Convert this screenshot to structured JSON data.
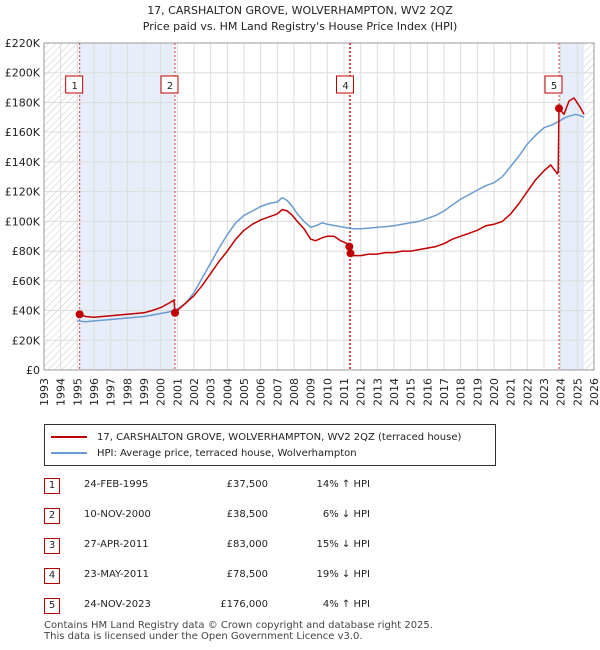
{
  "chart_data": {
    "type": "line",
    "title": "17, CARSHALTON GROVE, WOLVERHAMPTON, WV2 2QZ",
    "subtitle": "Price paid vs. HM Land Registry's House Price Index (HPI)",
    "xlim": [
      1993,
      2026
    ],
    "ylim": [
      0,
      220000
    ],
    "x_ticks": [
      1993,
      1994,
      1995,
      1996,
      1997,
      1998,
      1999,
      2000,
      2001,
      2002,
      2003,
      2004,
      2005,
      2006,
      2007,
      2008,
      2009,
      2010,
      2011,
      2012,
      2013,
      2014,
      2015,
      2016,
      2017,
      2018,
      2019,
      2020,
      2021,
      2022,
      2023,
      2024,
      2025,
      2026
    ],
    "y_ticks": [
      0,
      20000,
      40000,
      60000,
      80000,
      100000,
      120000,
      140000,
      160000,
      180000,
      200000,
      220000
    ],
    "y_tick_labels": [
      "£0",
      "£20K",
      "£40K",
      "£60K",
      "£80K",
      "£100K",
      "£120K",
      "£140K",
      "£160K",
      "£180K",
      "£200K",
      "£220K"
    ],
    "shaded_ranges": [
      [
        1995.14,
        2000.86
      ],
      [
        2023.9,
        2025.4
      ]
    ],
    "hatched_ranges": [
      [
        1993,
        1995.14
      ],
      [
        2025.4,
        2026
      ]
    ],
    "grid": true,
    "series": [
      {
        "name": "17, CARSHALTON GROVE, WOLVERHAMPTON, WV2 2QZ (terraced house)",
        "color": "#c00000",
        "x": [
          1995.14,
          1995.5,
          1996,
          1996.5,
          1997,
          1997.5,
          1998,
          1998.5,
          1999,
          1999.5,
          2000,
          2000.5,
          2000.8,
          2000.86,
          2001,
          2001.5,
          2002,
          2002.5,
          2003,
          2003.5,
          2004,
          2004.5,
          2005,
          2005.5,
          2006,
          2006.5,
          2007,
          2007.3,
          2007.6,
          2007.9,
          2008.2,
          2008.6,
          2009,
          2009.3,
          2009.7,
          2010,
          2010.4,
          2010.8,
          2011.2,
          2011.32,
          2011.39,
          2011.5,
          2012,
          2012.5,
          2013,
          2013.5,
          2014,
          2014.5,
          2015,
          2015.5,
          2016,
          2016.5,
          2017,
          2017.5,
          2018,
          2018.5,
          2019,
          2019.5,
          2020,
          2020.5,
          2021,
          2021.5,
          2022,
          2022.5,
          2023,
          2023.4,
          2023.8,
          2023.85,
          2023.9,
          2024.2,
          2024.5,
          2024.8,
          2025.1,
          2025.4
        ],
        "values": [
          37500,
          36000,
          35500,
          36000,
          36500,
          37000,
          37500,
          38000,
          38500,
          40000,
          42000,
          45000,
          47000,
          38500,
          40000,
          45000,
          50000,
          57000,
          65000,
          73000,
          80000,
          88000,
          94000,
          98000,
          101000,
          103000,
          105000,
          108000,
          107000,
          104000,
          100000,
          95000,
          88000,
          87000,
          89000,
          90000,
          90000,
          87000,
          85000,
          83000,
          78500,
          77000,
          77000,
          78000,
          78000,
          79000,
          79000,
          80000,
          80000,
          81000,
          82000,
          83000,
          85000,
          88000,
          90000,
          92000,
          94000,
          97000,
          98000,
          100000,
          105000,
          112000,
          120000,
          128000,
          134000,
          138000,
          132000,
          134000,
          176000,
          172000,
          181000,
          183000,
          178000,
          172000
        ]
      },
      {
        "name": "HPI: Average price, terraced house, Wolverhampton",
        "color": "#6a9bd1",
        "x": [
          1995,
          1995.5,
          1996,
          1996.5,
          1997,
          1997.5,
          1998,
          1998.5,
          1999,
          1999.5,
          2000,
          2000.5,
          2001,
          2001.5,
          2002,
          2002.5,
          2003,
          2003.5,
          2004,
          2004.5,
          2005,
          2005.5,
          2006,
          2006.5,
          2007,
          2007.3,
          2007.6,
          2007.9,
          2008.2,
          2008.6,
          2009,
          2009.3,
          2009.7,
          2010,
          2010.5,
          2011,
          2011.5,
          2012,
          2012.5,
          2013,
          2013.5,
          2014,
          2014.5,
          2015,
          2015.5,
          2016,
          2016.5,
          2017,
          2017.5,
          2018,
          2018.5,
          2019,
          2019.5,
          2020,
          2020.5,
          2021,
          2021.5,
          2022,
          2022.5,
          2023,
          2023.5,
          2024,
          2024.3,
          2024.6,
          2024.9,
          2025.2,
          2025.4
        ],
        "values": [
          33000,
          32500,
          33000,
          33500,
          34000,
          34500,
          35000,
          35500,
          36000,
          37000,
          38000,
          39000,
          41000,
          45000,
          52000,
          62000,
          72000,
          82000,
          91000,
          99000,
          104000,
          107000,
          110000,
          112000,
          113000,
          116000,
          114000,
          110000,
          105000,
          100000,
          96000,
          97000,
          99000,
          98000,
          97000,
          96000,
          95000,
          95000,
          95500,
          96000,
          96500,
          97000,
          98000,
          99000,
          100000,
          102000,
          104000,
          107000,
          111000,
          115000,
          118000,
          121000,
          124000,
          126000,
          130000,
          137000,
          144000,
          152000,
          158000,
          163000,
          165000,
          168000,
          170000,
          171000,
          172000,
          171000,
          170000
        ]
      }
    ],
    "annotations": [
      {
        "label": "1",
        "x": 1995.14,
        "y": 37500
      },
      {
        "label": "2",
        "x": 2000.86,
        "y": 38500
      },
      {
        "label": "4",
        "x": 2011.39,
        "y": 78500
      },
      {
        "label": "5",
        "x": 2023.9,
        "y": 176000
      }
    ],
    "sale_points": [
      {
        "x": 1995.14,
        "y": 37500
      },
      {
        "x": 2000.86,
        "y": 38500
      },
      {
        "x": 2011.32,
        "y": 83000
      },
      {
        "x": 2011.39,
        "y": 78500
      },
      {
        "x": 2023.9,
        "y": 176000
      }
    ]
  },
  "legend": {
    "items": [
      {
        "label": "17, CARSHALTON GROVE, WOLVERHAMPTON, WV2 2QZ (terraced house)",
        "color": "#c00000"
      },
      {
        "label": "HPI: Average price, terraced house, Wolverhampton",
        "color": "#6a9bd1"
      }
    ]
  },
  "transactions": [
    {
      "num": "1",
      "date": "24-FEB-1995",
      "price": "£37,500",
      "hpi": "14% ↑ HPI"
    },
    {
      "num": "2",
      "date": "10-NOV-2000",
      "price": "£38,500",
      "hpi": "6% ↓ HPI"
    },
    {
      "num": "3",
      "date": "27-APR-2011",
      "price": "£83,000",
      "hpi": "15% ↓ HPI"
    },
    {
      "num": "4",
      "date": "23-MAY-2011",
      "price": "£78,500",
      "hpi": "19% ↓ HPI"
    },
    {
      "num": "5",
      "date": "24-NOV-2023",
      "price": "£176,000",
      "hpi": "4% ↑ HPI"
    }
  ],
  "footer": {
    "line1": "Contains HM Land Registry data © Crown copyright and database right 2025.",
    "line2": "This data is licensed under the Open Government Licence v3.0."
  }
}
